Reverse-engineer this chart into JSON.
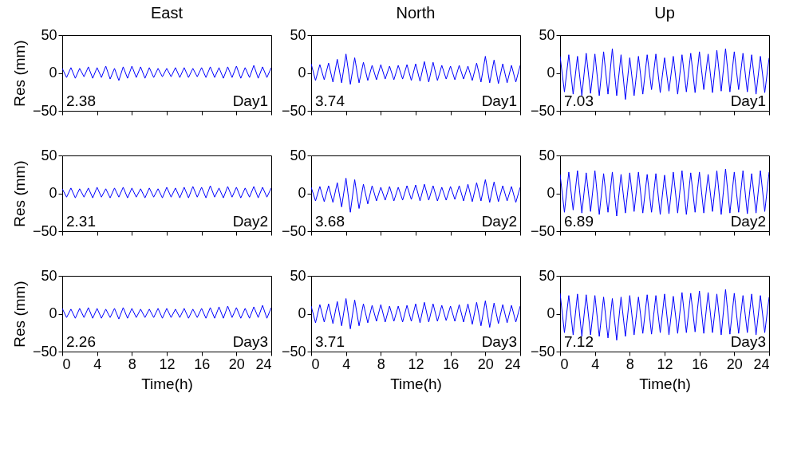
{
  "chart_data": [
    {
      "type": "line",
      "title": "East",
      "ylabel": "Res (mm)",
      "tick_labels": "y",
      "xlim": [
        0,
        24
      ],
      "xticks": [
        0,
        4,
        8,
        12,
        16,
        20,
        24
      ],
      "ylim": [
        -50,
        50
      ],
      "yticks": [
        -50,
        0,
        50
      ],
      "annotations": [
        "2.38",
        "Day1"
      ],
      "color": "#0000ff",
      "x": [
        0,
        0.5,
        1,
        1.5,
        2,
        2.5,
        3,
        3.5,
        4,
        4.5,
        5,
        5.5,
        6,
        6.5,
        7,
        7.5,
        8,
        8.5,
        9,
        9.5,
        10,
        10.5,
        11,
        11.5,
        12,
        12.5,
        13,
        13.5,
        14,
        14.5,
        15,
        15.5,
        16,
        16.5,
        17,
        17.5,
        18,
        18.5,
        19,
        19.5,
        20,
        20.5,
        21,
        21.5,
        22,
        22.5,
        23,
        23.5,
        24
      ],
      "values": [
        6,
        -6,
        7,
        -7,
        6,
        -5,
        8,
        -7,
        7,
        -6,
        9,
        -8,
        6,
        -10,
        8,
        -7,
        9,
        -6,
        8,
        -7,
        7,
        -6,
        6,
        -5,
        6,
        -5,
        7,
        -6,
        7,
        -6,
        6,
        -5,
        7,
        -6,
        8,
        -6,
        7,
        -7,
        8,
        -6,
        9,
        -7,
        7,
        -6,
        10,
        -7,
        8,
        -6,
        7
      ]
    },
    {
      "type": "line",
      "title": "North",
      "tick_labels": "y",
      "xlim": [
        0,
        24
      ],
      "xticks": [
        0,
        4,
        8,
        12,
        16,
        20,
        24
      ],
      "ylim": [
        -50,
        50
      ],
      "yticks": [
        -50,
        0,
        50
      ],
      "annotations": [
        "3.74",
        "Day1"
      ],
      "color": "#0000ff",
      "x": [
        0,
        0.5,
        1,
        1.5,
        2,
        2.5,
        3,
        3.5,
        4,
        4.5,
        5,
        5.5,
        6,
        6.5,
        7,
        7.5,
        8,
        8.5,
        9,
        9.5,
        10,
        10.5,
        11,
        11.5,
        12,
        12.5,
        13,
        13.5,
        14,
        14.5,
        15,
        15.5,
        16,
        16.5,
        17,
        17.5,
        18,
        18.5,
        19,
        19.5,
        20,
        20.5,
        21,
        21.5,
        22,
        22.5,
        23,
        23.5,
        24
      ],
      "values": [
        12,
        -10,
        11,
        -9,
        13,
        -12,
        18,
        -13,
        25,
        -15,
        20,
        -13,
        14,
        -10,
        10,
        -9,
        11,
        -8,
        9,
        -9,
        10,
        -8,
        11,
        -10,
        12,
        -11,
        15,
        -12,
        14,
        -10,
        10,
        -8,
        9,
        -9,
        10,
        -8,
        9,
        -10,
        13,
        -12,
        22,
        -13,
        17,
        -14,
        12,
        -13,
        10,
        -12,
        10
      ]
    },
    {
      "type": "line",
      "title": "Up",
      "tick_labels": "y",
      "xlim": [
        0,
        24
      ],
      "xticks": [
        0,
        4,
        8,
        12,
        16,
        20,
        24
      ],
      "ylim": [
        -50,
        50
      ],
      "yticks": [
        -50,
        0,
        50
      ],
      "annotations": [
        "7.03",
        "Day1"
      ],
      "color": "#0000ff",
      "x": [
        0,
        0.5,
        1,
        1.5,
        2,
        2.5,
        3,
        3.5,
        4,
        4.5,
        5,
        5.5,
        6,
        6.5,
        7,
        7.5,
        8,
        8.5,
        9,
        9.5,
        10,
        10.5,
        11,
        11.5,
        12,
        12.5,
        13,
        13.5,
        14,
        14.5,
        15,
        15.5,
        16,
        16.5,
        17,
        17.5,
        18,
        18.5,
        19,
        19.5,
        20,
        20.5,
        21,
        21.5,
        22,
        22.5,
        23,
        23.5,
        24
      ],
      "values": [
        22,
        -25,
        24,
        -28,
        22,
        -30,
        26,
        -27,
        25,
        -30,
        28,
        -28,
        32,
        -30,
        24,
        -35,
        20,
        -30,
        22,
        -28,
        24,
        -22,
        25,
        -26,
        20,
        -24,
        22,
        -28,
        24,
        -25,
        26,
        -26,
        28,
        -22,
        25,
        -26,
        30,
        -24,
        32,
        -25,
        28,
        -22,
        26,
        -25,
        24,
        -28,
        22,
        -26,
        20
      ]
    },
    {
      "type": "line",
      "ylabel": "Res (mm)",
      "tick_labels": "y",
      "xlim": [
        0,
        24
      ],
      "xticks": [
        0,
        4,
        8,
        12,
        16,
        20,
        24
      ],
      "ylim": [
        -50,
        50
      ],
      "yticks": [
        -50,
        0,
        50
      ],
      "annotations": [
        "2.31",
        "Day2"
      ],
      "color": "#0000ff",
      "x": [
        0,
        0.5,
        1,
        1.5,
        2,
        2.5,
        3,
        3.5,
        4,
        4.5,
        5,
        5.5,
        6,
        6.5,
        7,
        7.5,
        8,
        8.5,
        9,
        9.5,
        10,
        10.5,
        11,
        11.5,
        12,
        12.5,
        13,
        13.5,
        14,
        14.5,
        15,
        15.5,
        16,
        16.5,
        17,
        17.5,
        18,
        18.5,
        19,
        19.5,
        20,
        20.5,
        21,
        21.5,
        22,
        22.5,
        23,
        23.5,
        24
      ],
      "values": [
        6,
        -5,
        7,
        -6,
        6,
        -5,
        7,
        -6,
        8,
        -5,
        6,
        -6,
        7,
        -5,
        8,
        -6,
        7,
        -5,
        6,
        -6,
        7,
        -5,
        6,
        -6,
        8,
        -5,
        7,
        -6,
        8,
        -6,
        9,
        -5,
        8,
        -6,
        10,
        -5,
        7,
        -6,
        9,
        -5,
        8,
        -6,
        7,
        -5,
        9,
        -6,
        8,
        -5,
        7
      ]
    },
    {
      "type": "line",
      "tick_labels": "y",
      "xlim": [
        0,
        24
      ],
      "xticks": [
        0,
        4,
        8,
        12,
        16,
        20,
        24
      ],
      "ylim": [
        -50,
        50
      ],
      "yticks": [
        -50,
        0,
        50
      ],
      "annotations": [
        "3.68",
        "Day2"
      ],
      "color": "#0000ff",
      "x": [
        0,
        0.5,
        1,
        1.5,
        2,
        2.5,
        3,
        3.5,
        4,
        4.5,
        5,
        5.5,
        6,
        6.5,
        7,
        7.5,
        8,
        8.5,
        9,
        9.5,
        10,
        10.5,
        11,
        11.5,
        12,
        12.5,
        13,
        13.5,
        14,
        14.5,
        15,
        15.5,
        16,
        16.5,
        17,
        17.5,
        18,
        18.5,
        19,
        19.5,
        20,
        20.5,
        21,
        21.5,
        22,
        22.5,
        23,
        23.5,
        24
      ],
      "values": [
        8,
        -10,
        9,
        -11,
        10,
        -12,
        14,
        -18,
        20,
        -25,
        18,
        -20,
        12,
        -14,
        10,
        -10,
        8,
        -9,
        9,
        -10,
        8,
        -9,
        10,
        -8,
        11,
        -10,
        12,
        -9,
        10,
        -10,
        8,
        -9,
        9,
        -8,
        10,
        -10,
        12,
        -11,
        14,
        -10,
        18,
        -12,
        15,
        -11,
        10,
        -10,
        9,
        -12,
        8
      ]
    },
    {
      "type": "line",
      "tick_labels": "y",
      "xlim": [
        0,
        24
      ],
      "xticks": [
        0,
        4,
        8,
        12,
        16,
        20,
        24
      ],
      "ylim": [
        -50,
        50
      ],
      "yticks": [
        -50,
        0,
        50
      ],
      "annotations": [
        "6.89",
        "Day2"
      ],
      "color": "#0000ff",
      "x": [
        0,
        0.5,
        1,
        1.5,
        2,
        2.5,
        3,
        3.5,
        4,
        4.5,
        5,
        5.5,
        6,
        6.5,
        7,
        7.5,
        8,
        8.5,
        9,
        9.5,
        10,
        10.5,
        11,
        11.5,
        12,
        12.5,
        13,
        13.5,
        14,
        14.5,
        15,
        15.5,
        16,
        16.5,
        17,
        17.5,
        18,
        18.5,
        19,
        19.5,
        20,
        20.5,
        21,
        21.5,
        22,
        22.5,
        23,
        23.5,
        24
      ],
      "values": [
        25,
        -25,
        28,
        -22,
        30,
        -26,
        27,
        -24,
        30,
        -28,
        26,
        -25,
        28,
        -30,
        25,
        -26,
        27,
        -24,
        28,
        -26,
        25,
        -25,
        26,
        -28,
        24,
        -27,
        28,
        -26,
        30,
        -28,
        27,
        -25,
        28,
        -26,
        25,
        -24,
        30,
        -28,
        32,
        -26,
        28,
        -25,
        30,
        -27,
        26,
        -26,
        30,
        -24,
        28
      ]
    },
    {
      "type": "line",
      "ylabel": "Res (mm)",
      "xlabel": "Time(h)",
      "xlim": [
        0,
        24
      ],
      "xticks": [
        0,
        4,
        8,
        12,
        16,
        20,
        24
      ],
      "ylim": [
        -50,
        50
      ],
      "yticks": [
        -50,
        0,
        50
      ],
      "annotations": [
        "2.26",
        "Day3"
      ],
      "color": "#0000ff",
      "x": [
        0,
        0.5,
        1,
        1.5,
        2,
        2.5,
        3,
        3.5,
        4,
        4.5,
        5,
        5.5,
        6,
        6.5,
        7,
        7.5,
        8,
        8.5,
        9,
        9.5,
        10,
        10.5,
        11,
        11.5,
        12,
        12.5,
        13,
        13.5,
        14,
        14.5,
        15,
        15.5,
        16,
        16.5,
        17,
        17.5,
        18,
        18.5,
        19,
        19.5,
        20,
        20.5,
        21,
        21.5,
        22,
        22.5,
        23,
        23.5,
        24
      ],
      "values": [
        7,
        -5,
        6,
        -6,
        7,
        -5,
        8,
        -6,
        7,
        -6,
        6,
        -5,
        7,
        -7,
        8,
        -6,
        7,
        -5,
        6,
        -5,
        6,
        -5,
        7,
        -6,
        7,
        -5,
        6,
        -5,
        7,
        -6,
        6,
        -5,
        7,
        -6,
        8,
        -6,
        9,
        -6,
        10,
        -5,
        8,
        -6,
        7,
        -6,
        9,
        -5,
        11,
        -6,
        8
      ]
    },
    {
      "type": "line",
      "xlabel": "Time(h)",
      "xlim": [
        0,
        24
      ],
      "xticks": [
        0,
        4,
        8,
        12,
        16,
        20,
        24
      ],
      "ylim": [
        -50,
        50
      ],
      "yticks": [
        -50,
        0,
        50
      ],
      "annotations": [
        "3.71",
        "Day3"
      ],
      "color": "#0000ff",
      "x": [
        0,
        0.5,
        1,
        1.5,
        2,
        2.5,
        3,
        3.5,
        4,
        4.5,
        5,
        5.5,
        6,
        6.5,
        7,
        7.5,
        8,
        8.5,
        9,
        9.5,
        10,
        10.5,
        11,
        11.5,
        12,
        12.5,
        13,
        13.5,
        14,
        14.5,
        15,
        15.5,
        16,
        16.5,
        17,
        17.5,
        18,
        18.5,
        19,
        19.5,
        20,
        20.5,
        21,
        21.5,
        22,
        22.5,
        23,
        23.5,
        24
      ],
      "values": [
        10,
        -12,
        12,
        -11,
        13,
        -13,
        16,
        -16,
        20,
        -20,
        18,
        -16,
        13,
        -12,
        11,
        -10,
        12,
        -11,
        10,
        -10,
        10,
        -11,
        11,
        -10,
        13,
        -12,
        15,
        -11,
        13,
        -10,
        11,
        -9,
        10,
        -10,
        12,
        -11,
        13,
        -14,
        15,
        -16,
        17,
        -18,
        14,
        -13,
        12,
        -12,
        11,
        -11,
        10
      ]
    },
    {
      "type": "line",
      "xlabel": "Time(h)",
      "xlim": [
        0,
        24
      ],
      "xticks": [
        0,
        4,
        8,
        12,
        16,
        20,
        24
      ],
      "ylim": [
        -50,
        50
      ],
      "yticks": [
        -50,
        0,
        50
      ],
      "annotations": [
        "7.12",
        "Day3"
      ],
      "color": "#0000ff",
      "x": [
        0,
        0.5,
        1,
        1.5,
        2,
        2.5,
        3,
        3.5,
        4,
        4.5,
        5,
        5.5,
        6,
        6.5,
        7,
        7.5,
        8,
        8.5,
        9,
        9.5,
        10,
        10.5,
        11,
        11.5,
        12,
        12.5,
        13,
        13.5,
        14,
        14.5,
        15,
        15.5,
        16,
        16.5,
        17,
        17.5,
        18,
        18.5,
        19,
        19.5,
        20,
        20.5,
        21,
        21.5,
        22,
        22.5,
        23,
        23.5,
        24
      ],
      "values": [
        27,
        -25,
        24,
        -28,
        26,
        -30,
        25,
        -28,
        24,
        -30,
        22,
        -32,
        20,
        -35,
        22,
        -30,
        24,
        -28,
        22,
        -26,
        25,
        -27,
        24,
        -25,
        26,
        -28,
        23,
        -26,
        28,
        -25,
        27,
        -24,
        30,
        -26,
        28,
        -25,
        26,
        -28,
        32,
        -27,
        27,
        -26,
        24,
        -25,
        26,
        -28,
        24,
        -25,
        22
      ]
    }
  ]
}
